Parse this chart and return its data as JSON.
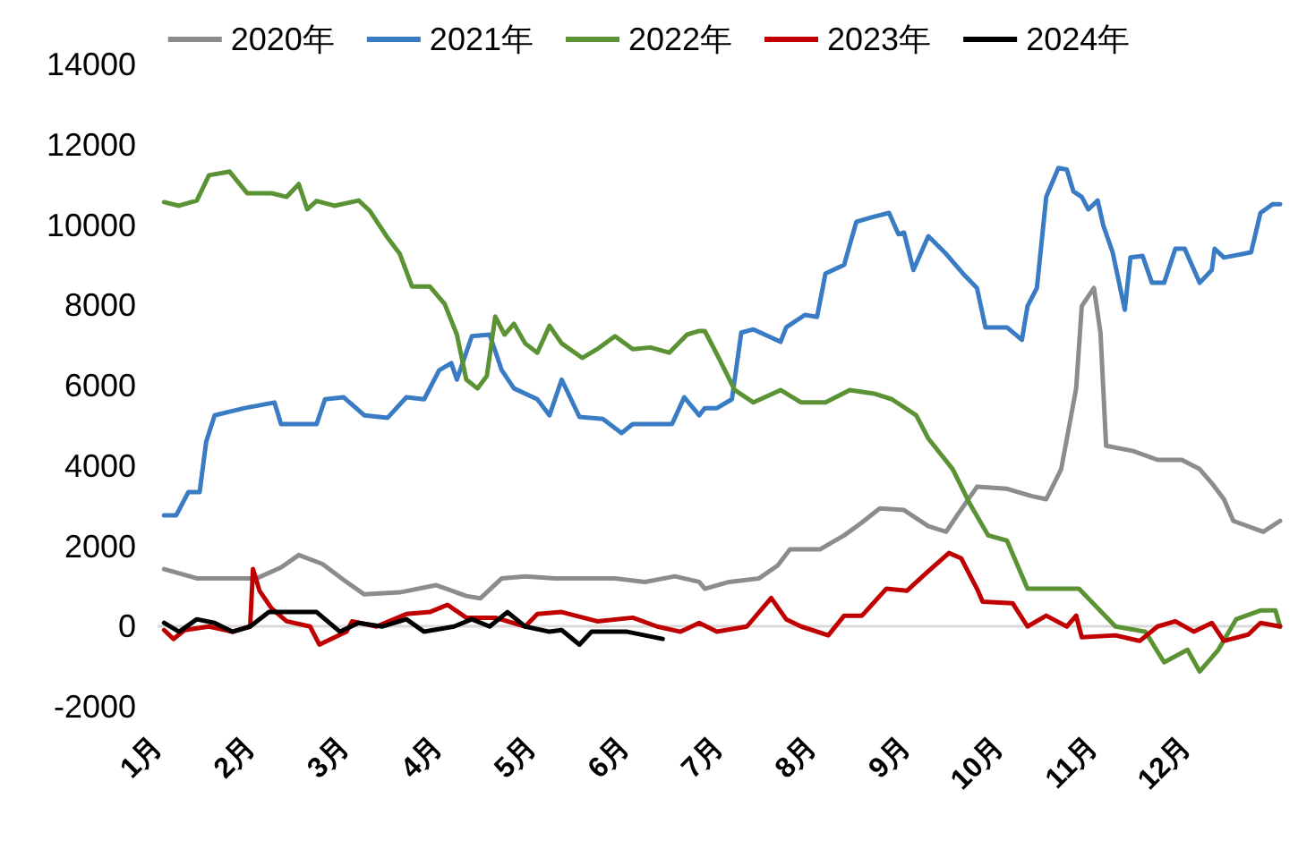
{
  "chart_data": {
    "type": "line",
    "legend": "top",
    "marker": "none",
    "line_style": "solid",
    "grid": false,
    "xlim": [
      1,
      13
    ],
    "xticks": [
      {
        "value": 1,
        "label": "1月"
      },
      {
        "value": 2,
        "label": "2月"
      },
      {
        "value": 3,
        "label": "3月"
      },
      {
        "value": 4,
        "label": "4月"
      },
      {
        "value": 5,
        "label": "5月"
      },
      {
        "value": 6,
        "label": "6月"
      },
      {
        "value": 7,
        "label": "7月"
      },
      {
        "value": 8,
        "label": "8月"
      },
      {
        "value": 9,
        "label": "9月"
      },
      {
        "value": 10,
        "label": "10月"
      },
      {
        "value": 11,
        "label": "11月"
      },
      {
        "value": 12,
        "label": "12月"
      }
    ],
    "ylim": [
      -2000,
      14000
    ],
    "yticks": [
      -2000,
      0,
      2000,
      4000,
      6000,
      8000,
      10000,
      12000,
      14000
    ],
    "ref_lines": [
      {
        "axis": "y",
        "value": 0,
        "color": "#d9d9d9"
      }
    ],
    "series": [
      {
        "name": "2020年",
        "color": "#8c8c8c",
        "x": [
          1.07,
          1.42,
          2.06,
          2.32,
          2.51,
          2.76,
          3.02,
          3.21,
          3.59,
          3.98,
          4.3,
          4.45,
          4.68,
          4.93,
          5.25,
          5.57,
          5.89,
          6.21,
          6.53,
          6.79,
          6.85,
          7.11,
          7.43,
          7.63,
          7.76,
          8.08,
          8.34,
          8.53,
          8.72,
          8.98,
          9.24,
          9.43,
          9.56,
          9.76,
          10.08,
          10.34,
          10.5,
          10.66,
          10.82,
          10.88,
          11.01,
          11.08,
          11.14,
          11.43,
          11.69,
          11.95,
          12.14,
          12.27,
          12.4,
          12.5,
          12.82,
          13.0
        ],
        "values": [
          1430,
          1200,
          1200,
          1470,
          1780,
          1560,
          1110,
          800,
          850,
          1030,
          760,
          700,
          1200,
          1250,
          1200,
          1200,
          1200,
          1110,
          1250,
          1110,
          940,
          1110,
          1200,
          1520,
          1920,
          1920,
          2270,
          2590,
          2940,
          2900,
          2500,
          2360,
          2810,
          3480,
          3430,
          3250,
          3170,
          3920,
          5930,
          7980,
          8430,
          7320,
          4500,
          4370,
          4150,
          4150,
          3920,
          3570,
          3170,
          2630,
          2360,
          2630
        ]
      },
      {
        "name": "2021年",
        "color": "#3a7cc3",
        "x": [
          1.07,
          1.2,
          1.33,
          1.45,
          1.52,
          1.61,
          1.93,
          2.25,
          2.32,
          2.7,
          2.79,
          2.99,
          3.21,
          3.46,
          3.66,
          3.85,
          4.01,
          4.14,
          4.2,
          4.36,
          4.55,
          4.68,
          4.81,
          5.06,
          5.19,
          5.32,
          5.51,
          5.76,
          5.96,
          6.08,
          6.21,
          6.5,
          6.63,
          6.79,
          6.85,
          6.98,
          7.14,
          7.24,
          7.37,
          7.66,
          7.72,
          7.92,
          8.05,
          8.14,
          8.34,
          8.47,
          8.66,
          8.82,
          8.92,
          8.98,
          9.08,
          9.24,
          9.43,
          9.63,
          9.76,
          9.85,
          10.08,
          10.24,
          10.3,
          10.4,
          10.5,
          10.63,
          10.72,
          10.79,
          10.88,
          10.95,
          11.05,
          11.11,
          11.21,
          11.34,
          11.4,
          11.53,
          11.63,
          11.76,
          11.88,
          11.98,
          12.14,
          12.27,
          12.3,
          12.4,
          12.69,
          12.79,
          12.92,
          13.0
        ],
        "values": [
          2770,
          2770,
          3350,
          3350,
          4600,
          5260,
          5440,
          5580,
          5040,
          5040,
          5660,
          5710,
          5260,
          5200,
          5710,
          5660,
          6380,
          6560,
          6150,
          7230,
          7270,
          6380,
          5930,
          5660,
          5260,
          6150,
          5220,
          5170,
          4820,
          5040,
          5040,
          5040,
          5710,
          5260,
          5440,
          5440,
          5660,
          7320,
          7400,
          7090,
          7450,
          7760,
          7710,
          8790,
          9010,
          10080,
          10210,
          10300,
          9770,
          9810,
          8880,
          9720,
          9280,
          8740,
          8430,
          7450,
          7450,
          7140,
          7980,
          8430,
          10700,
          11420,
          11380,
          10840,
          10700,
          10390,
          10610,
          9990,
          9320,
          7890,
          9190,
          9230,
          8560,
          8560,
          9410,
          9410,
          8560,
          8880,
          9410,
          9190,
          9320,
          10300,
          10520,
          10520
        ]
      },
      {
        "name": "2022年",
        "color": "#5a9234",
        "x": [
          1.07,
          1.23,
          1.42,
          1.55,
          1.77,
          1.96,
          2.22,
          2.38,
          2.51,
          2.6,
          2.7,
          2.89,
          3.15,
          3.27,
          3.46,
          3.59,
          3.72,
          3.91,
          4.07,
          4.2,
          4.3,
          4.42,
          4.52,
          4.61,
          4.71,
          4.81,
          4.93,
          5.06,
          5.19,
          5.32,
          5.54,
          5.7,
          5.89,
          6.08,
          6.27,
          6.47,
          6.66,
          6.79,
          6.85,
          6.98,
          7.17,
          7.37,
          7.66,
          7.88,
          8.14,
          8.4,
          8.66,
          8.85,
          9.11,
          9.24,
          9.5,
          9.69,
          9.88,
          10.08,
          10.3,
          10.59,
          10.85,
          11.24,
          11.56,
          11.76,
          12.01,
          12.14,
          12.34,
          12.53,
          12.79,
          12.95,
          13.0
        ],
        "values": [
          10570,
          10480,
          10610,
          11240,
          11330,
          10790,
          10790,
          10700,
          11020,
          10390,
          10600,
          10480,
          10610,
          10350,
          9680,
          9280,
          8470,
          8470,
          8030,
          7270,
          6150,
          5930,
          6240,
          7720,
          7270,
          7540,
          7050,
          6820,
          7490,
          7050,
          6690,
          6910,
          7230,
          6910,
          6950,
          6820,
          7270,
          7360,
          7360,
          6780,
          5890,
          5580,
          5890,
          5580,
          5580,
          5890,
          5800,
          5660,
          5260,
          4680,
          3920,
          3030,
          2270,
          2140,
          940,
          940,
          940,
          0,
          -130,
          -890,
          -580,
          -1120,
          -580,
          180,
          400,
          400,
          0
        ]
      },
      {
        "name": "2023年",
        "color": "#c00000",
        "x": [
          1.07,
          1.17,
          1.29,
          1.55,
          1.8,
          1.99,
          2.02,
          2.09,
          2.22,
          2.38,
          2.63,
          2.73,
          3.02,
          3.08,
          3.34,
          3.66,
          3.91,
          4.1,
          4.3,
          4.61,
          4.93,
          5.06,
          5.32,
          5.7,
          6.08,
          6.34,
          6.59,
          6.79,
          6.98,
          7.3,
          7.56,
          7.72,
          7.88,
          8.17,
          8.34,
          8.53,
          8.79,
          9.01,
          9.24,
          9.46,
          9.59,
          9.76,
          9.82,
          10.14,
          10.3,
          10.5,
          10.72,
          10.82,
          10.88,
          11.24,
          11.5,
          11.69,
          11.88,
          12.08,
          12.27,
          12.4,
          12.66,
          12.79,
          13.0
        ],
        "values": [
          -90,
          -310,
          -90,
          0,
          -130,
          0,
          1430,
          890,
          450,
          130,
          0,
          -450,
          -130,
          130,
          0,
          310,
          360,
          540,
          220,
          220,
          0,
          310,
          360,
          130,
          220,
          0,
          -130,
          90,
          -130,
          0,
          710,
          180,
          0,
          -220,
          270,
          270,
          940,
          890,
          1380,
          1830,
          1700,
          940,
          620,
          580,
          0,
          270,
          0,
          270,
          -270,
          -220,
          -360,
          0,
          130,
          -130,
          90,
          -360,
          -200,
          90,
          0
        ]
      },
      {
        "name": "2024年",
        "color": "#000000",
        "x": [
          1.07,
          1.23,
          1.42,
          1.61,
          1.8,
          1.99,
          2.19,
          2.44,
          2.7,
          2.95,
          3.15,
          3.4,
          3.66,
          3.85,
          4.17,
          4.36,
          4.55,
          4.74,
          4.93,
          5.19,
          5.32,
          5.51,
          5.64,
          6.02,
          6.4
        ],
        "values": [
          90,
          -130,
          180,
          90,
          -130,
          0,
          360,
          360,
          360,
          -130,
          90,
          0,
          180,
          -130,
          0,
          180,
          0,
          360,
          0,
          -130,
          -90,
          -450,
          -130,
          -130,
          -310
        ]
      }
    ]
  }
}
